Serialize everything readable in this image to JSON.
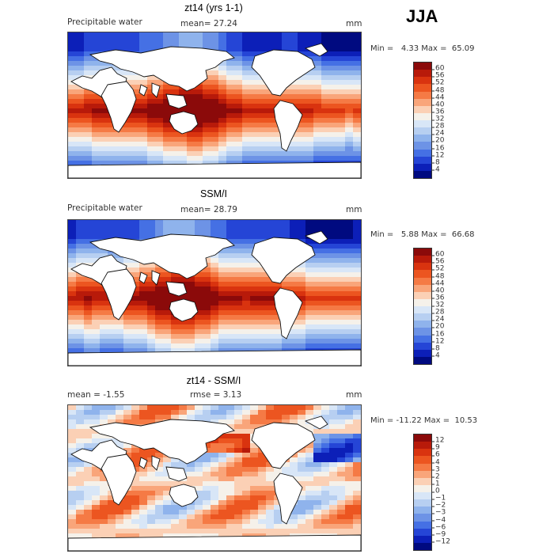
{
  "season": "JJA",
  "panels": [
    {
      "title": "zt14 (yrs 1-1)",
      "left_label": "Precipitable water",
      "mean_text": "mean=  27.24",
      "units": "mm",
      "min_max": "Min =   4.33 Max =  65.09",
      "colorbar": {
        "labels": [
          "60",
          "56",
          "52",
          "48",
          "44",
          "40",
          "36",
          "32",
          "28",
          "24",
          "20",
          "16",
          "12",
          "8",
          "4"
        ],
        "colors": [
          "#8b0a0a",
          "#b81a0a",
          "#d9330f",
          "#ec5520",
          "#f57a45",
          "#f9a57a",
          "#fbd0b5",
          "#f5f1ea",
          "#d8e6f7",
          "#b7cff1",
          "#8fb3ec",
          "#6d93e6",
          "#4570e4",
          "#2545d6",
          "#0c1fb8",
          "#000a80"
        ]
      }
    },
    {
      "title": "SSM/I",
      "left_label": "Precipitable water",
      "mean_text": "mean=  28.79",
      "units": "mm",
      "min_max": "Min =   5.88 Max =  66.68",
      "colorbar": {
        "labels": [
          "60",
          "56",
          "52",
          "48",
          "44",
          "40",
          "36",
          "32",
          "28",
          "24",
          "20",
          "16",
          "12",
          "8",
          "4"
        ],
        "colors": [
          "#8b0a0a",
          "#b81a0a",
          "#d9330f",
          "#ec5520",
          "#f57a45",
          "#f9a57a",
          "#fbd0b5",
          "#f5f1ea",
          "#d8e6f7",
          "#b7cff1",
          "#8fb3ec",
          "#6d93e6",
          "#4570e4",
          "#2545d6",
          "#0c1fb8",
          "#000a80"
        ]
      }
    },
    {
      "title": "zt14 - SSM/I",
      "left_label": "mean =  -1.55",
      "mean_text": "rmse =   3.13",
      "units": "mm",
      "min_max": "Min = -11.22 Max =  10.53",
      "colorbar": {
        "labels": [
          "12",
          "9",
          "6",
          "4",
          "3",
          "2",
          "1",
          "0",
          "−1",
          "−2",
          "−3",
          "−4",
          "−6",
          "−9",
          "−12"
        ],
        "colors": [
          "#8b0a0a",
          "#b81a0a",
          "#d9330f",
          "#ec5520",
          "#f57a45",
          "#f9a57a",
          "#fbd0b5",
          "#f5f1ea",
          "#d8e6f7",
          "#b7cff1",
          "#8fb3ec",
          "#6d93e6",
          "#4570e4",
          "#2545d6",
          "#0c1fb8",
          "#000a80"
        ]
      }
    }
  ]
}
